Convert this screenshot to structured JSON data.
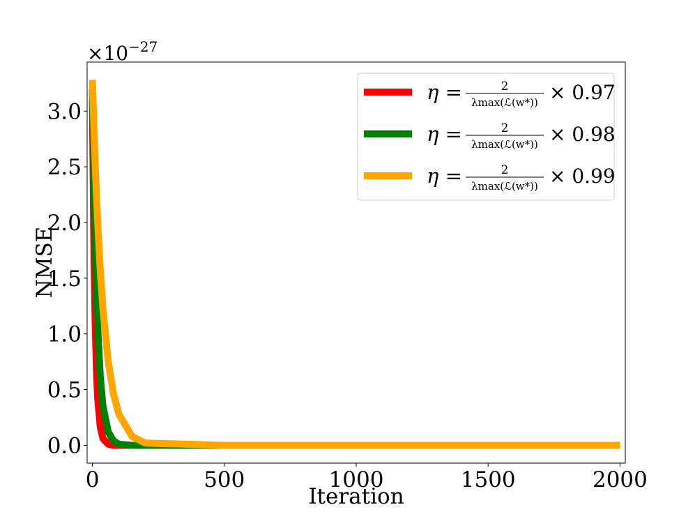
{
  "chart_data": {
    "type": "line",
    "xlabel": "Iteration",
    "ylabel": "NMSE",
    "y_multiplier": "×10",
    "y_exponent": "−27",
    "xlim": [
      -20,
      2020
    ],
    "ylim": [
      -0.16,
      3.44
    ],
    "x_ticks": [
      0,
      500,
      1000,
      1500,
      2000
    ],
    "x_tick_labels": [
      "0",
      "500",
      "1000",
      "1500",
      "2000"
    ],
    "y_ticks": [
      0.0,
      0.5,
      1.0,
      1.5,
      2.0,
      2.5,
      3.0
    ],
    "y_tick_labels": [
      "0.0",
      "0.5",
      "1.0",
      "1.5",
      "2.0",
      "2.5",
      "3.0"
    ],
    "grid": false,
    "legend_position": "top-right",
    "series": [
      {
        "name": "η = 2/λmax(ℒ(w*)) × 0.97",
        "factor": "0.97",
        "color": "#ff0000",
        "x": [
          0,
          5,
          10,
          15,
          20,
          30,
          40,
          60,
          80,
          100,
          150,
          200,
          500,
          1000,
          1500,
          2000
        ],
        "y": [
          3.1,
          1.9,
          1.15,
          0.7,
          0.42,
          0.16,
          0.06,
          0.01,
          0.0,
          0.0,
          0.0,
          0.0,
          0.0,
          0.0,
          0.0,
          0.0
        ]
      },
      {
        "name": "η = 2/λmax(ℒ(w*)) × 0.98",
        "factor": "0.98",
        "color": "#008000",
        "x": [
          0,
          5,
          10,
          15,
          20,
          30,
          40,
          60,
          80,
          100,
          150,
          200,
          500,
          1000,
          1500,
          2000
        ],
        "y": [
          3.2,
          2.45,
          1.85,
          1.4,
          1.06,
          0.61,
          0.35,
          0.12,
          0.04,
          0.01,
          0.0,
          0.0,
          0.0,
          0.0,
          0.0,
          0.0
        ]
      },
      {
        "name": "η = 2/λmax(ℒ(w*)) × 0.99",
        "factor": "0.99",
        "color": "#ffa500",
        "x": [
          0,
          5,
          10,
          15,
          20,
          30,
          40,
          60,
          80,
          100,
          150,
          200,
          500,
          1000,
          1500,
          2000
        ],
        "y": [
          3.28,
          2.9,
          2.56,
          2.26,
          2.0,
          1.56,
          1.22,
          0.75,
          0.46,
          0.28,
          0.08,
          0.02,
          0.0,
          0.0,
          0.0,
          0.0
        ]
      }
    ]
  }
}
